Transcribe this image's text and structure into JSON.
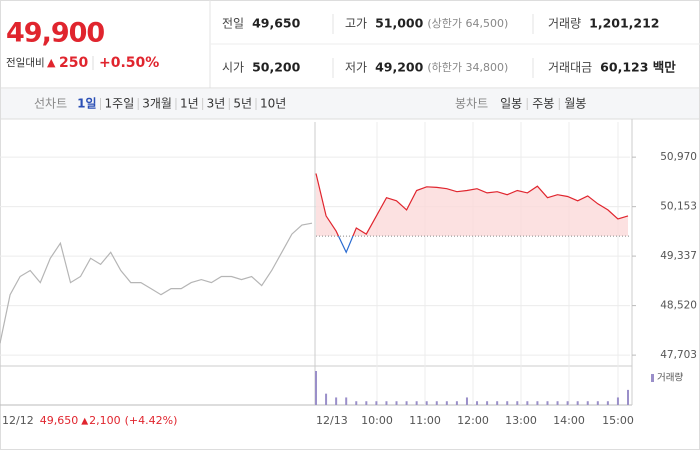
{
  "header": {
    "price": "49,900",
    "change_label": "전일대비",
    "change": "250",
    "change_pct": "+0.50%"
  },
  "stats": [
    {
      "label": "전일",
      "value": "49,650"
    },
    {
      "label": "고가",
      "value": "51,000",
      "sub": "(상한가 64,500)"
    },
    {
      "label": "거래량",
      "value": "1,201,212"
    },
    {
      "label": "시가",
      "value": "50,200"
    },
    {
      "label": "저가",
      "value": "49,200",
      "sub": "(하한가 34,800)"
    },
    {
      "label": "거래대금",
      "value": "60,123 백만"
    }
  ],
  "tabs": {
    "line_label": "선차트",
    "line_items": [
      "1일",
      "1주일",
      "3개월",
      "1년",
      "3년",
      "5년",
      "10년"
    ],
    "candle_label": "봉차트",
    "candle_items": [
      "일봉",
      "주봉",
      "월봉"
    ]
  },
  "chart_data": {
    "type": "line",
    "ylim": [
      47540,
      51550
    ],
    "yticks": [
      {
        "value": 50970,
        "label": "50,970"
      },
      {
        "value": 50153,
        "label": "50,153"
      },
      {
        "value": 49337,
        "label": "49,337"
      },
      {
        "value": 48520,
        "label": "48,520"
      },
      {
        "value": 47703,
        "label": "47,703"
      }
    ],
    "baseline": 49667,
    "x_labels": [
      "12/13",
      "10:00",
      "11:00",
      "12:00",
      "13:00",
      "14:00",
      "15:00"
    ],
    "series": [
      {
        "name": "12/12",
        "color": "#b5b5b5",
        "values": [
          47900,
          48700,
          49000,
          49100,
          48900,
          49300,
          49550,
          48900,
          49000,
          49300,
          49200,
          49400,
          49100,
          48900,
          48900,
          48800,
          48700,
          48800,
          48800,
          48900,
          48950,
          48900,
          49000,
          49000,
          48950,
          49000,
          48850,
          49100,
          49400,
          49700,
          49850,
          49880
        ]
      },
      {
        "name": "12/13",
        "color": "#e0252e",
        "down_color": "#2a6bd1",
        "values": [
          50700,
          50000,
          49750,
          49400,
          49800,
          49700,
          50000,
          50300,
          50250,
          50100,
          50420,
          50480,
          50470,
          50450,
          50400,
          50420,
          50450,
          50380,
          50400,
          50350,
          50420,
          50380,
          50490,
          50300,
          50350,
          50320,
          50250,
          50330,
          50200,
          50100,
          49950,
          50000
        ]
      }
    ],
    "volume_label": "거래량",
    "volume": [
      9,
      3,
      2,
      2,
      1,
      1,
      1,
      1,
      1,
      1,
      1,
      1,
      1,
      1,
      1,
      2,
      1,
      1,
      1,
      1,
      1,
      1,
      1,
      1,
      1,
      1,
      1,
      1,
      1,
      1,
      2,
      4
    ],
    "footer": {
      "date": "12/12",
      "close": "49,650",
      "change": "2,100",
      "change_pct": "(+4.42%)"
    }
  }
}
